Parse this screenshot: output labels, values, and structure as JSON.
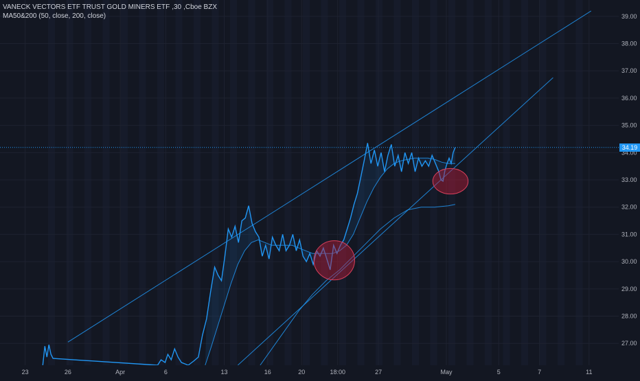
{
  "header": {
    "symbol": "VANECK VECTORS ETF TRUST GOLD MINERS ETF",
    "interval": "30",
    "exchange": "Cboe BZX",
    "indicator": "MA50&200 (50, close, 200, close)"
  },
  "colors": {
    "background": "#131722",
    "price_line": "#2196f3",
    "trendlines": "#2196f3",
    "grid": "#1e2230",
    "axis_text": "#b2b5be",
    "highlight_circle": "#b71c3a",
    "price_tag": "#2196f3"
  },
  "chart_data": {
    "type": "line",
    "title": "VANECK VECTORS ETF TRUST GOLD MINERS ETF, 30, Cboe BZX",
    "ylim": [
      26.2,
      39.6
    ],
    "yticks": [
      27,
      28,
      29,
      30,
      31,
      32,
      33,
      34,
      35,
      36,
      37,
      38,
      39
    ],
    "ytick_labels": [
      "27.00",
      "28.00",
      "29.00",
      "30.00",
      "31.00",
      "32.00",
      "33.00",
      "34.00",
      "35.00",
      "36.00",
      "37.00",
      "38.00",
      "39.00"
    ],
    "x_labels": [
      "23",
      "26",
      "Apr",
      "6",
      "13",
      "16",
      "20",
      "18:00",
      "27",
      "May",
      "5",
      "7",
      "11"
    ],
    "x_tick_index": [
      0,
      6.3,
      14,
      20.7,
      29.3,
      35.7,
      40.7,
      46,
      52,
      62,
      69.7,
      75.7,
      83
    ],
    "x_range": [
      -3.7,
      90.5
    ],
    "last_price": 34.19,
    "last_price_label": "34.19",
    "series": [
      {
        "role": "price",
        "points": [
          [
            2.6,
            26.2
          ],
          [
            2.9,
            26.9
          ],
          [
            3.2,
            26.5
          ],
          [
            3.5,
            26.95
          ],
          [
            3.8,
            26.6
          ],
          [
            4.1,
            26.45
          ],
          [
            19.5,
            26.2
          ],
          [
            20,
            26.4
          ],
          [
            20.6,
            26.3
          ],
          [
            21,
            26.6
          ],
          [
            21.5,
            26.4
          ],
          [
            22,
            26.8
          ],
          [
            22.5,
            26.5
          ],
          [
            23,
            26.3
          ],
          [
            24,
            26.2
          ],
          [
            24.8,
            26.35
          ],
          [
            25.5,
            26.5
          ],
          [
            26.1,
            27.3
          ],
          [
            26.7,
            27.9
          ],
          [
            27.3,
            28.9
          ],
          [
            27.9,
            29.8
          ],
          [
            28.4,
            29.5
          ],
          [
            28.9,
            29.3
          ],
          [
            29.4,
            30.2
          ],
          [
            29.9,
            31.2
          ],
          [
            30.4,
            30.9
          ],
          [
            30.9,
            31.3
          ],
          [
            31.4,
            30.7
          ],
          [
            31.9,
            31.5
          ],
          [
            32.4,
            31.6
          ],
          [
            32.9,
            32.05
          ],
          [
            33.4,
            31.4
          ],
          [
            33.9,
            31.1
          ],
          [
            34.4,
            30.9
          ],
          [
            34.9,
            30.2
          ],
          [
            35.4,
            30.6
          ],
          [
            35.9,
            30.1
          ],
          [
            36.4,
            30.9
          ],
          [
            36.9,
            30.6
          ],
          [
            37.4,
            30.4
          ],
          [
            37.9,
            31.0
          ],
          [
            38.4,
            30.4
          ],
          [
            38.9,
            30.6
          ],
          [
            39.4,
            31.0
          ],
          [
            39.9,
            30.4
          ],
          [
            40.4,
            30.8
          ],
          [
            40.9,
            30.2
          ],
          [
            41.4,
            30.0
          ],
          [
            41.9,
            30.3
          ],
          [
            42.4,
            29.9
          ],
          [
            42.9,
            30.4
          ],
          [
            43.4,
            30.2
          ],
          [
            43.9,
            30.5
          ],
          [
            44.4,
            30.1
          ],
          [
            44.9,
            29.7
          ],
          [
            45.4,
            30.6
          ],
          [
            45.9,
            30.3
          ],
          [
            46.4,
            30.6
          ],
          [
            46.9,
            30.8
          ],
          [
            47.4,
            31.2
          ],
          [
            47.9,
            31.6
          ],
          [
            48.4,
            32.1
          ],
          [
            48.9,
            32.5
          ],
          [
            49.4,
            33.1
          ],
          [
            49.9,
            33.7
          ],
          [
            50.4,
            34.35
          ],
          [
            50.9,
            33.6
          ],
          [
            51.4,
            34.1
          ],
          [
            51.9,
            33.5
          ],
          [
            52.4,
            34.0
          ],
          [
            52.9,
            33.3
          ],
          [
            53.4,
            33.9
          ],
          [
            53.9,
            34.3
          ],
          [
            54.4,
            33.5
          ],
          [
            54.9,
            33.9
          ],
          [
            55.4,
            33.3
          ],
          [
            55.9,
            34.0
          ],
          [
            56.4,
            33.6
          ],
          [
            56.9,
            34.0
          ],
          [
            57.4,
            33.3
          ],
          [
            57.9,
            33.8
          ],
          [
            58.4,
            33.5
          ],
          [
            58.9,
            33.7
          ],
          [
            59.4,
            33.5
          ],
          [
            59.9,
            33.9
          ],
          [
            60.4,
            33.6
          ],
          [
            60.9,
            33.3
          ],
          [
            61.2,
            33.0
          ],
          [
            61.5,
            32.95
          ],
          [
            61.8,
            33.35
          ],
          [
            62.1,
            33.6
          ],
          [
            62.4,
            33.8
          ],
          [
            62.7,
            33.6
          ],
          [
            63.0,
            34.0
          ],
          [
            63.3,
            34.19
          ]
        ]
      },
      {
        "role": "ma50",
        "points": [
          [
            26.5,
            26.2
          ],
          [
            27.3,
            26.8
          ],
          [
            28.3,
            27.6
          ],
          [
            29.3,
            28.4
          ],
          [
            30.3,
            29.2
          ],
          [
            31.3,
            29.9
          ],
          [
            32.3,
            30.4
          ],
          [
            33.3,
            30.7
          ],
          [
            34.3,
            30.8
          ],
          [
            35.3,
            30.7
          ],
          [
            36.3,
            30.6
          ],
          [
            37.3,
            30.6
          ],
          [
            38.3,
            30.6
          ],
          [
            39.3,
            30.6
          ],
          [
            40.3,
            30.5
          ],
          [
            41.3,
            30.4
          ],
          [
            42.3,
            30.3
          ],
          [
            43.3,
            30.3
          ],
          [
            44.3,
            30.3
          ],
          [
            45.3,
            30.3
          ],
          [
            46.3,
            30.4
          ],
          [
            47.3,
            30.6
          ],
          [
            48.3,
            31.0
          ],
          [
            49.3,
            31.6
          ],
          [
            50.3,
            32.2
          ],
          [
            51.3,
            32.7
          ],
          [
            52.3,
            33.1
          ],
          [
            53.3,
            33.4
          ],
          [
            54.3,
            33.6
          ],
          [
            55.3,
            33.7
          ],
          [
            56.3,
            33.75
          ],
          [
            57.3,
            33.8
          ],
          [
            58.3,
            33.8
          ],
          [
            59.3,
            33.8
          ],
          [
            60.3,
            33.75
          ],
          [
            61.3,
            33.65
          ],
          [
            62.3,
            33.6
          ],
          [
            63.3,
            33.6
          ]
        ]
      },
      {
        "role": "ma200",
        "points": [
          [
            34.6,
            26.2
          ],
          [
            36.3,
            26.8
          ],
          [
            38.3,
            27.5
          ],
          [
            40.3,
            28.2
          ],
          [
            42.3,
            28.8
          ],
          [
            44.3,
            29.3
          ],
          [
            46.3,
            29.7
          ],
          [
            48.3,
            30.2
          ],
          [
            50.3,
            30.7
          ],
          [
            52.3,
            31.2
          ],
          [
            54.3,
            31.6
          ],
          [
            56.3,
            31.9
          ],
          [
            58.3,
            32.0
          ],
          [
            60.3,
            32.0
          ],
          [
            62.3,
            32.05
          ],
          [
            63.3,
            32.1
          ]
        ]
      },
      {
        "role": "upper-channel-line",
        "points": [
          [
            6.3,
            27.05
          ],
          [
            83.3,
            39.2
          ]
        ]
      },
      {
        "role": "lower-channel-line",
        "points": [
          [
            31.3,
            26.2
          ],
          [
            77.7,
            36.75
          ]
        ]
      }
    ],
    "highlight_circles": [
      {
        "x": 45.5,
        "y": 30.05,
        "rx": 3.0,
        "ry": 0.72
      },
      {
        "x": 62.6,
        "y": 32.95,
        "rx": 2.6,
        "ry": 0.47
      }
    ]
  }
}
